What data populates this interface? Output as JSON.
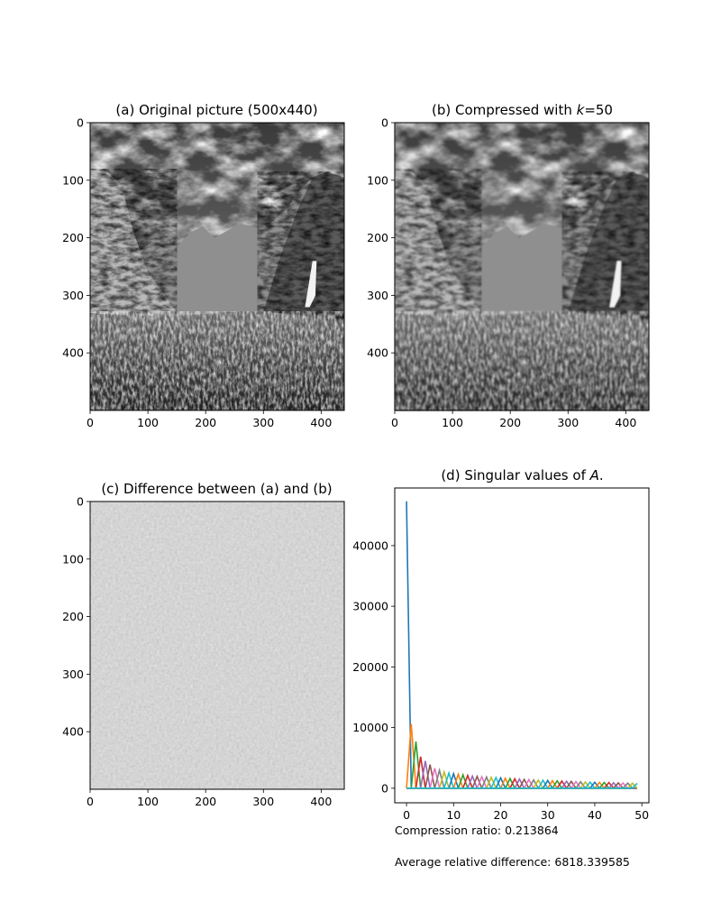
{
  "figure": {
    "captions": [
      "Compression ratio: 0.213864",
      "Average relative difference: 6818.339585"
    ]
  },
  "chart_data": [
    {
      "type": "image",
      "title_text": "(a) Original picture (500x440)",
      "xticks": [
        0,
        100,
        200,
        300,
        400
      ],
      "yticks": [
        0,
        100,
        200,
        300,
        400
      ],
      "xlim": [
        0,
        440
      ],
      "ylim": [
        500,
        0
      ],
      "image_size": [
        500,
        440
      ],
      "content": "grayscale-landscape"
    },
    {
      "type": "image",
      "title_prefix": "(b) Compressed with ",
      "title_var": "k",
      "title_suffix": "=50",
      "xticks": [
        0,
        100,
        200,
        300,
        400
      ],
      "yticks": [
        0,
        100,
        200,
        300,
        400
      ],
      "xlim": [
        0,
        440
      ],
      "ylim": [
        500,
        0
      ],
      "image_size": [
        500,
        440
      ],
      "content": "grayscale-landscape-compressed"
    },
    {
      "type": "image",
      "title_text": "(c) Difference between (a) and (b)",
      "xticks": [
        0,
        100,
        200,
        300,
        400
      ],
      "yticks": [
        0,
        100,
        200,
        300,
        400
      ],
      "xlim": [
        0,
        440
      ],
      "ylim": [
        500,
        0
      ],
      "image_size": [
        500,
        440
      ],
      "content": "grayscale-difference"
    },
    {
      "type": "line",
      "title_prefix": "(d) Singular values of ",
      "title_var": "A",
      "title_suffix": ".",
      "xticks": [
        0,
        10,
        20,
        30,
        40,
        50
      ],
      "yticks": [
        0,
        10000,
        20000,
        30000,
        40000
      ],
      "xlim": [
        -2.5,
        51.5
      ],
      "ylim": [
        -2400,
        49500
      ],
      "singular_values": [
        47300,
        10600,
        7700,
        5200,
        4500,
        3900,
        3300,
        2950,
        2700,
        2500,
        2400,
        2300,
        2200,
        2100,
        2000,
        1950,
        1900,
        1850,
        1800,
        1750,
        1700,
        1650,
        1600,
        1550,
        1500,
        1460,
        1420,
        1380,
        1340,
        1300,
        1270,
        1240,
        1210,
        1180,
        1150,
        1120,
        1090,
        1060,
        1030,
        1000,
        980,
        960,
        940,
        920,
        900,
        880,
        860,
        840,
        820,
        800
      ],
      "palette": [
        "#1f77b4",
        "#ff7f0e",
        "#2ca02c",
        "#d62728",
        "#9467bd",
        "#8c564b",
        "#e377c2",
        "#7f7f7f",
        "#bcbd22",
        "#17becf"
      ]
    }
  ]
}
